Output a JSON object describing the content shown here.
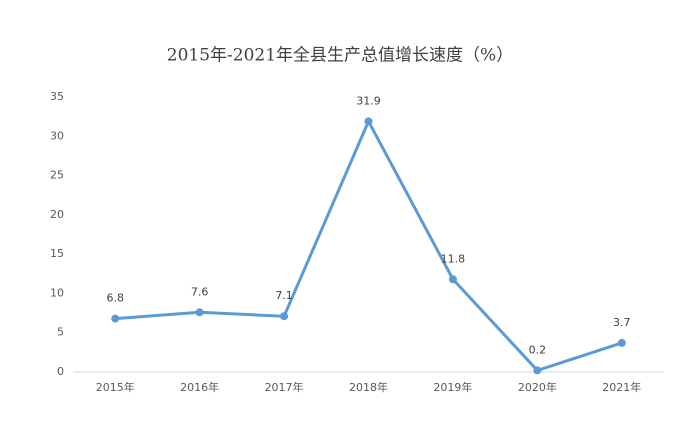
{
  "chart_data": {
    "type": "line",
    "title": "2015年-2021年全县生产总值增长速度（%）",
    "categories": [
      "2015年",
      "2016年",
      "2017年",
      "2018年",
      "2019年",
      "2020年",
      "2021年"
    ],
    "values": [
      6.8,
      7.6,
      7.1,
      31.9,
      11.8,
      0.2,
      3.7
    ],
    "color": "#5b9bd5",
    "ylim": [
      0,
      35
    ],
    "yticks": [
      0,
      5,
      10,
      15,
      20,
      25,
      30,
      35
    ],
    "grid": false
  }
}
